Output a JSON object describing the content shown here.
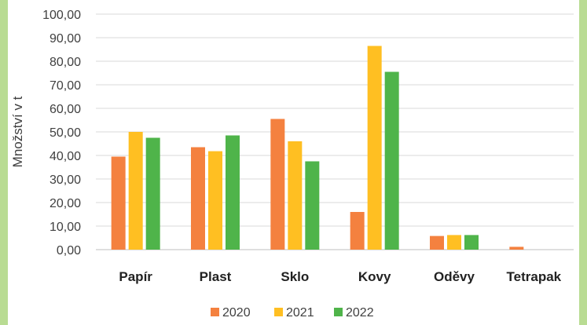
{
  "chart_data": {
    "type": "bar",
    "categories": [
      "Papír",
      "Plast",
      "Sklo",
      "Kovy",
      "Oděvy",
      "Tetrapak"
    ],
    "series": [
      {
        "name": "2020",
        "color": "#f4813f",
        "values": [
          39.5,
          43.5,
          55.5,
          16.0,
          5.8,
          1.2
        ]
      },
      {
        "name": "2021",
        "color": "#ffbf22",
        "values": [
          50.0,
          41.8,
          46.0,
          86.5,
          6.2,
          0
        ]
      },
      {
        "name": "2022",
        "color": "#4fb44a",
        "values": [
          47.5,
          48.5,
          37.5,
          75.5,
          6.2,
          0
        ]
      }
    ],
    "ylabel": "Množství v t",
    "ylim": [
      0,
      100
    ],
    "yticks": [
      "0,00",
      "10,00",
      "20,00",
      "30,00",
      "40,00",
      "50,00",
      "60,00",
      "70,00",
      "80,00",
      "90,00",
      "100,00"
    ],
    "grid": true,
    "legend": "bottom"
  }
}
